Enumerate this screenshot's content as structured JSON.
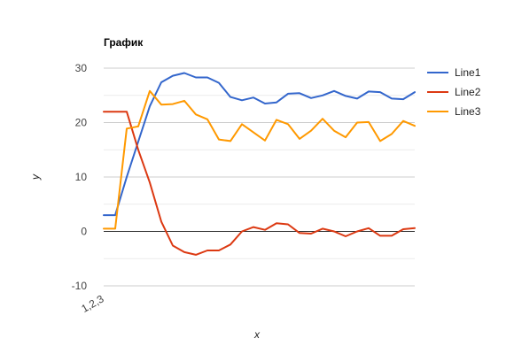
{
  "chart_data": {
    "type": "line",
    "title": "График",
    "xlabel": "x",
    "ylabel": "y",
    "x_tick_label": "1,2,3",
    "ylim": [
      -10,
      30
    ],
    "y_ticks": [
      -10,
      0,
      10,
      20,
      30
    ],
    "grid": true,
    "legend_position": "right",
    "x": [
      0,
      1,
      2,
      3,
      4,
      5,
      6,
      7,
      8,
      9,
      10,
      11,
      12,
      13,
      14,
      15,
      16,
      17,
      18,
      19,
      20,
      21,
      22,
      23,
      24,
      25,
      26,
      27
    ],
    "series": [
      {
        "name": "Line1",
        "color": "#3366cc",
        "values": [
          3,
          3,
          10,
          16.5,
          23,
          27.4,
          28.6,
          29.1,
          28.3,
          28.3,
          27.3,
          24.7,
          24.1,
          24.6,
          23.5,
          23.7,
          25.3,
          25.4,
          24.5,
          25.0,
          25.8,
          24.9,
          24.4,
          25.7,
          25.6,
          24.4,
          24.3,
          25.6
        ]
      },
      {
        "name": "Line2",
        "color": "#dc3912",
        "values": [
          22,
          22,
          22,
          15,
          9,
          1.8,
          -2.6,
          -3.8,
          -4.3,
          -3.5,
          -3.5,
          -2.4,
          0,
          0.8,
          0.3,
          1.5,
          1.3,
          -0.3,
          -0.4,
          0.5,
          0,
          -0.9,
          0,
          0.6,
          -0.8,
          -0.8,
          0.4,
          0.6
        ]
      },
      {
        "name": "Line3",
        "color": "#ff9900",
        "values": [
          0.5,
          0.5,
          18.9,
          19.3,
          25.8,
          23.3,
          23.4,
          24.0,
          21.5,
          20.6,
          16.9,
          16.6,
          19.7,
          18.2,
          16.7,
          20.5,
          19.7,
          17.0,
          18.5,
          20.7,
          18.5,
          17.3,
          20.0,
          20.1,
          16.6,
          17.9,
          20.3,
          19.4
        ]
      }
    ]
  }
}
